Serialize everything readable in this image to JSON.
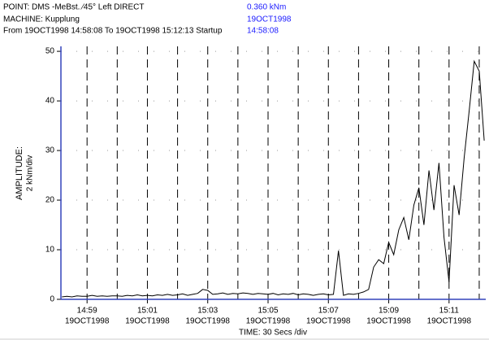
{
  "chart_data": {
    "type": "line",
    "header": {
      "point": "POINT: DMS -MeBst.  ⁄45° Left      DIRECT",
      "machine": "MACHINE: Kupplung",
      "range": "From 19OCT1998 14:58:08 To 19OCT1998 15:12:13 Startup",
      "value": "0.360 kNm",
      "date": "19OCT1998",
      "time": "14:58:08"
    },
    "ylabel": "AMPLITUDE:",
    "ylabel_unit": "2 kNm/div",
    "xlabel": "TIME: 30 Secs /div",
    "xtick_date": "19OCT1998",
    "color": "#000000",
    "axis_color": "#3344bb",
    "grid": true,
    "xlim": [
      "14:58:08",
      "15:12:13"
    ],
    "xticks": [
      "14:59",
      "15:01",
      "15:03",
      "15:05",
      "15:07",
      "15:09",
      "15:11"
    ],
    "xgrid": [
      "14:59",
      "15:00",
      "15:01",
      "15:02",
      "15:03",
      "15:04",
      "15:05",
      "15:06",
      "15:07",
      "15:08",
      "15:09",
      "15:10",
      "15:11",
      "15:12"
    ],
    "ylim": [
      0,
      51
    ],
    "yticks": [
      0,
      10,
      20,
      30,
      40,
      50
    ],
    "x": [
      "14:58:10",
      "14:58:20",
      "14:58:30",
      "14:58:40",
      "14:58:50",
      "14:59:00",
      "14:59:10",
      "14:59:20",
      "14:59:30",
      "14:59:40",
      "14:59:50",
      "15:00:00",
      "15:00:10",
      "15:00:20",
      "15:00:30",
      "15:00:40",
      "15:00:50",
      "15:01:00",
      "15:01:10",
      "15:01:20",
      "15:01:30",
      "15:01:40",
      "15:01:50",
      "15:02:00",
      "15:02:10",
      "15:02:20",
      "15:02:30",
      "15:02:40",
      "15:02:50",
      "15:03:00",
      "15:03:10",
      "15:03:20",
      "15:03:30",
      "15:03:40",
      "15:03:50",
      "15:04:00",
      "15:04:10",
      "15:04:20",
      "15:04:30",
      "15:04:40",
      "15:04:50",
      "15:05:00",
      "15:05:10",
      "15:05:20",
      "15:05:30",
      "15:05:40",
      "15:05:50",
      "15:06:00",
      "15:06:10",
      "15:06:20",
      "15:06:30",
      "15:06:40",
      "15:06:50",
      "15:07:00",
      "15:07:10",
      "15:07:20",
      "15:07:30",
      "15:07:40",
      "15:07:50",
      "15:08:00",
      "15:08:10",
      "15:08:20",
      "15:08:30",
      "15:08:40",
      "15:08:50",
      "15:09:00",
      "15:09:10",
      "15:09:20",
      "15:09:30",
      "15:09:40",
      "15:09:50",
      "15:10:00",
      "15:10:10",
      "15:10:20",
      "15:10:30",
      "15:10:40",
      "15:10:50",
      "15:11:00",
      "15:11:10",
      "15:11:20",
      "15:11:30",
      "15:11:40",
      "15:11:50",
      "15:12:00",
      "15:12:10"
    ],
    "values": [
      0.5,
      0.6,
      0.5,
      0.7,
      0.6,
      0.6,
      0.8,
      0.6,
      0.7,
      0.6,
      0.7,
      0.7,
      0.6,
      0.8,
      0.7,
      0.9,
      0.7,
      0.8,
      0.7,
      0.9,
      0.8,
      1.0,
      0.8,
      0.9,
      1.1,
      0.8,
      1.0,
      1.2,
      2.0,
      1.8,
      1.0,
      1.1,
      1.3,
      1.0,
      1.2,
      1.1,
      1.3,
      1.2,
      1.0,
      1.2,
      1.1,
      1.0,
      1.2,
      0.9,
      1.1,
      1.0,
      1.2,
      0.9,
      1.1,
      1.0,
      0.8,
      1.0,
      1.1,
      0.9,
      1.0,
      9.8,
      0.8,
      1.1,
      1.0,
      1.2,
      1.5,
      2.0,
      6.5,
      8.0,
      7.2,
      11.5,
      9.0,
      14.0,
      16.5,
      12.0,
      19.0,
      22.5,
      15.0,
      26.0,
      18.0,
      27.5,
      12.5,
      3.5,
      23.0,
      17.0,
      28.5,
      38.0,
      48.0,
      46.0,
      32.0
    ]
  }
}
